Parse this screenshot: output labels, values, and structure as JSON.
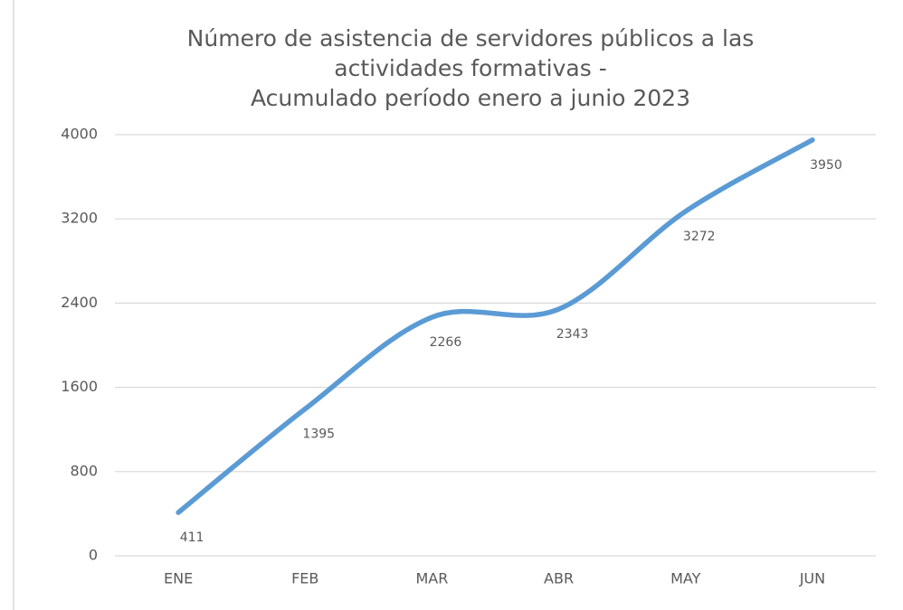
{
  "chart_data": {
    "type": "line",
    "title": [
      "Número de asistencia de servidores públicos a las",
      "actividades formativas -",
      "Acumulado período enero a junio 2023"
    ],
    "categories": [
      "ENE",
      "FEB",
      "MAR",
      "ABR",
      "MAY",
      "JUN"
    ],
    "values": [
      411,
      1395,
      2266,
      2343,
      3272,
      3950
    ],
    "color": "#5b9bd5",
    "smooth": true,
    "ylim": [
      0,
      4000
    ],
    "yticks": [
      0,
      800,
      1600,
      2400,
      3200,
      4000
    ],
    "grid": true
  }
}
